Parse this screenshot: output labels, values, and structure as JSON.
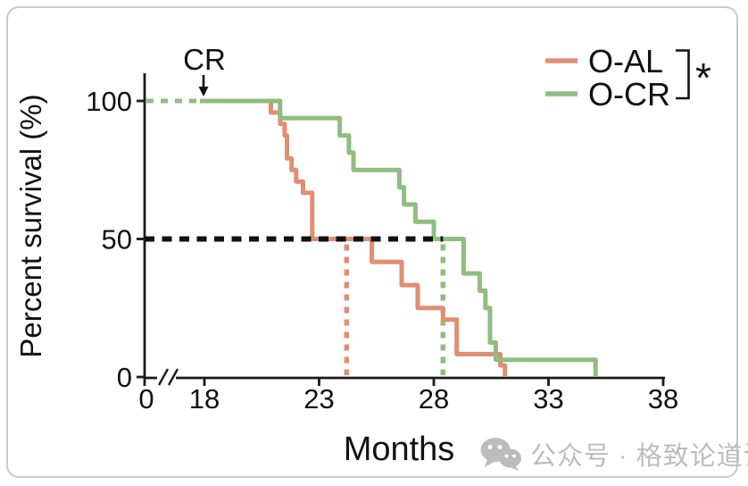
{
  "chart_data": {
    "type": "line",
    "subtype": "kaplan_meier_step",
    "title": "",
    "xlabel": "Months",
    "ylabel": "Percent survival (%)",
    "x_ticks": [
      0,
      18,
      23,
      28,
      33,
      38
    ],
    "x_axis_break_between": [
      0,
      18
    ],
    "y_ticks": [
      0,
      50,
      100
    ],
    "xlim_months": [
      18,
      38
    ],
    "ylim": [
      0,
      100
    ],
    "grid": false,
    "legend_position": "top-right",
    "annotation": {
      "label": "CR",
      "month": 18
    },
    "half_survival_line": {
      "percent": 50,
      "style": "dashed",
      "color": "#111111",
      "to_month": 28.4
    },
    "pre_cr_dotted_line": {
      "percent": 100,
      "from": "y-axis",
      "to_month": 17.8,
      "color": "#90bd80"
    },
    "significance": "*",
    "series": [
      {
        "name": "O-AL",
        "color": "#e08e72",
        "median_month": 24.2,
        "points": [
          [
            18,
            100
          ],
          [
            20.9,
            95.8
          ],
          [
            21.3,
            91.7
          ],
          [
            21.5,
            87.5
          ],
          [
            21.6,
            79.2
          ],
          [
            21.8,
            75
          ],
          [
            22.0,
            70.8
          ],
          [
            22.3,
            66.7
          ],
          [
            22.7,
            50
          ],
          [
            25.3,
            41.7
          ],
          [
            26.6,
            33.3
          ],
          [
            27.3,
            25
          ],
          [
            28.4,
            20.8
          ],
          [
            29.0,
            8.3
          ],
          [
            30.9,
            4.2
          ],
          [
            31.1,
            0
          ]
        ]
      },
      {
        "name": "O-CR",
        "color": "#90bd80",
        "median_month": 28.4,
        "points": [
          [
            17.8,
            100
          ],
          [
            21.3,
            93.75
          ],
          [
            23.9,
            87.5
          ],
          [
            24.3,
            81.25
          ],
          [
            24.5,
            75
          ],
          [
            26.5,
            68.75
          ],
          [
            26.7,
            62.5
          ],
          [
            27.2,
            56.25
          ],
          [
            28.0,
            50
          ],
          [
            29.3,
            37.5
          ],
          [
            30.0,
            31.25
          ],
          [
            30.25,
            25
          ],
          [
            30.45,
            12.5
          ],
          [
            30.7,
            6.25
          ],
          [
            35.05,
            0
          ]
        ]
      }
    ],
    "legend": {
      "items": [
        {
          "label": "O-AL"
        },
        {
          "label": "O-CR"
        }
      ],
      "significance_label": "*"
    }
  },
  "watermark": {
    "text": "公众号 · 格致论道讲坛",
    "icon": "wechat-icon"
  }
}
